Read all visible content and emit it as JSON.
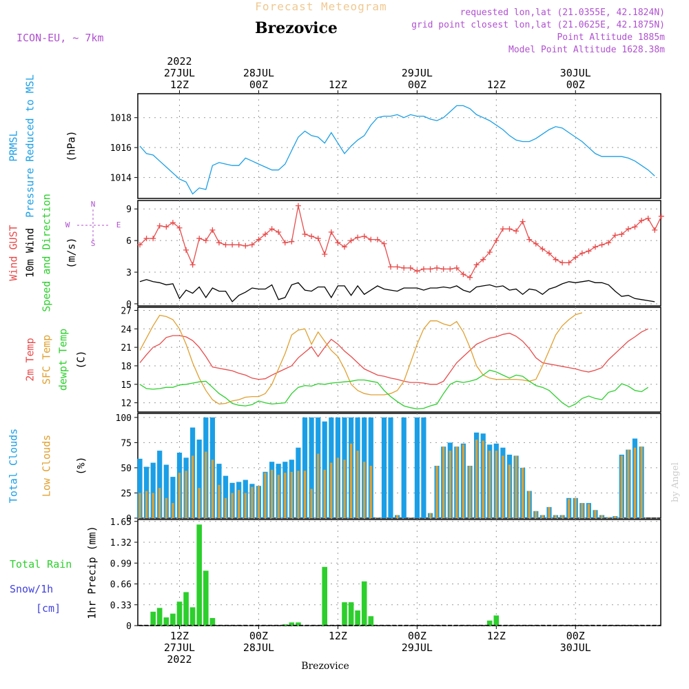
{
  "header": {
    "forecast_title": "Forecast Meteogram",
    "location": "Brezovice",
    "model": "ICON-EU, ~ 7km",
    "requested": "requested lon,lat (21.0355E, 42.1824N)",
    "grid_point": "grid point closest lon,lat (21.0625E, 42.1875N)",
    "point_altitude": "Point Altitude 1885m",
    "model_altitude": "Model Point Altitude 1628.38m",
    "watermark": "by Angel",
    "footer": "Brezovice"
  },
  "time_axis": {
    "top": [
      {
        "x": 6,
        "lines": [
          "2022",
          "27JUL",
          "12Z"
        ]
      },
      {
        "x": 18,
        "lines": [
          "28JUL",
          "00Z"
        ]
      },
      {
        "x": 30,
        "lines": [
          "12Z"
        ]
      },
      {
        "x": 42,
        "lines": [
          "29JUL",
          "00Z"
        ]
      },
      {
        "x": 54,
        "lines": [
          "12Z"
        ]
      },
      {
        "x": 66,
        "lines": [
          "30JUL",
          "00Z"
        ]
      }
    ],
    "bottom": [
      {
        "x": 6,
        "lines": [
          "12Z",
          "27JUL",
          "2022"
        ]
      },
      {
        "x": 18,
        "lines": [
          "00Z",
          "28JUL"
        ]
      },
      {
        "x": 30,
        "lines": [
          "12Z"
        ]
      },
      {
        "x": 42,
        "lines": [
          "00Z",
          "29JUL"
        ]
      },
      {
        "x": 54,
        "lines": [
          "12Z"
        ]
      },
      {
        "x": 66,
        "lines": [
          "00Z",
          "30JUL"
        ]
      }
    ]
  },
  "chart_data": [
    {
      "type": "line",
      "ylabels": [
        "PRMSL",
        "Pressure Reduced to MSL",
        "(hPa)"
      ],
      "ylim": [
        1012.6,
        1019.6
      ],
      "yticks": [
        1014,
        1016,
        1018
      ],
      "grid": true,
      "series": [
        {
          "color": "#1a9fe6",
          "x_start": 0,
          "values": [
            1016.1,
            1015.6,
            1015.5,
            1015.1,
            1014.7,
            1014.3,
            1013.9,
            1013.7,
            1012.9,
            1013.3,
            1013.2,
            1014.8,
            1015.0,
            1014.9,
            1014.8,
            1014.8,
            1015.3,
            1015.1,
            1014.9,
            1014.7,
            1014.5,
            1014.5,
            1014.9,
            1015.8,
            1016.7,
            1017.1,
            1016.8,
            1016.7,
            1016.3,
            1017.0,
            1016.3,
            1015.6,
            1016.1,
            1016.5,
            1016.8,
            1017.5,
            1018.0,
            1018.1,
            1018.1,
            1018.2,
            1018.0,
            1018.2,
            1018.1,
            1018.1,
            1017.9,
            1017.8,
            1018.0,
            1018.4,
            1018.8,
            1018.8,
            1018.6,
            1018.2,
            1018.0,
            1017.8,
            1017.5,
            1017.2,
            1016.8,
            1016.5,
            1016.4,
            1016.4,
            1016.6,
            1016.9,
            1017.2,
            1017.4,
            1017.3,
            1017.0,
            1016.7,
            1016.4,
            1016.0,
            1015.6,
            1015.4,
            1015.4,
            1015.4,
            1015.4,
            1015.3,
            1015.1,
            1014.8,
            1014.5,
            1014.1
          ]
        }
      ]
    },
    {
      "type": "line",
      "ylabels": [
        "Wind GUST",
        "10m Wind",
        "Speed and Direction",
        "(m/s)"
      ],
      "compass": [
        "N",
        "W",
        "E",
        "S"
      ],
      "ylim": [
        -0.2,
        9.8
      ],
      "yticks": [
        0,
        3,
        6,
        9
      ],
      "grid": true,
      "series": [
        {
          "color": "#e84b4b",
          "marker": "+",
          "x_start": 0,
          "values": [
            5.6,
            6.2,
            6.2,
            7.4,
            7.3,
            7.7,
            7.2,
            5.1,
            3.7,
            6.2,
            6.0,
            7.0,
            5.8,
            5.6,
            5.6,
            5.6,
            5.5,
            5.6,
            6.1,
            6.6,
            7.1,
            6.8,
            5.8,
            5.9,
            9.3,
            6.6,
            6.4,
            6.2,
            4.7,
            6.8,
            5.8,
            5.4,
            6.0,
            6.3,
            6.4,
            6.1,
            6.1,
            5.7,
            3.5,
            3.5,
            3.4,
            3.4,
            3.1,
            3.3,
            3.3,
            3.4,
            3.3,
            3.3,
            3.4,
            2.8,
            2.5,
            3.7,
            4.2,
            4.9,
            6.0,
            7.1,
            7.1,
            6.9,
            7.8,
            6.1,
            5.7,
            5.2,
            4.8,
            4.2,
            3.9,
            3.9,
            4.4,
            4.8,
            5.0,
            5.4,
            5.6,
            5.8,
            6.5,
            6.6,
            7.1,
            7.3,
            7.9,
            8.1,
            7.0,
            8.3
          ]
        },
        {
          "color": "#000000",
          "x_start": 0,
          "values": [
            2.1,
            2.3,
            2.1,
            2.0,
            1.8,
            1.9,
            0.5,
            1.3,
            1.0,
            1.6,
            0.6,
            1.5,
            1.2,
            1.2,
            0.2,
            0.8,
            1.1,
            1.5,
            1.4,
            1.4,
            1.8,
            0.4,
            0.6,
            1.8,
            2.0,
            1.3,
            1.2,
            1.6,
            1.6,
            0.6,
            1.7,
            1.7,
            0.8,
            1.7,
            0.9,
            1.3,
            1.7,
            1.4,
            1.3,
            1.2,
            1.5,
            1.5,
            1.5,
            1.3,
            1.5,
            1.5,
            1.6,
            1.5,
            1.7,
            1.3,
            1.1,
            1.6,
            1.7,
            1.8,
            1.6,
            1.7,
            1.3,
            1.4,
            0.9,
            1.4,
            1.3,
            0.9,
            1.4,
            1.6,
            1.9,
            2.1,
            2.0,
            2.1,
            2.2,
            2.0,
            2.0,
            1.8,
            1.2,
            0.7,
            0.8,
            0.5,
            0.4,
            0.3,
            0.2
          ]
        }
      ]
    },
    {
      "type": "line",
      "ylabels": [
        "2m Temp",
        "SFC Temp",
        "dewpt Temp",
        "(C)"
      ],
      "ylim": [
        10.5,
        27.5
      ],
      "yticks": [
        12,
        15,
        18,
        21,
        24,
        27
      ],
      "grid": true,
      "series": [
        {
          "color": "#e84b4b",
          "x_start": 0,
          "values": [
            18.5,
            19.8,
            21.0,
            21.5,
            22.6,
            22.9,
            22.9,
            22.7,
            22.1,
            21.0,
            19.5,
            17.8,
            17.6,
            17.4,
            17.2,
            16.8,
            16.5,
            16.0,
            15.8,
            15.9,
            16.5,
            17.0,
            17.5,
            18.0,
            19.3,
            20.2,
            21.1,
            19.5,
            21.0,
            22.3,
            21.5,
            20.4,
            19.5,
            18.5,
            17.5,
            17.0,
            16.5,
            16.3,
            16.0,
            15.8,
            15.5,
            15.3,
            15.3,
            15.2,
            15.0,
            15.0,
            15.5,
            17.0,
            18.5,
            19.5,
            20.5,
            21.5,
            22.0,
            22.5,
            22.7,
            23.1,
            23.3,
            22.8,
            22.0,
            20.8,
            19.3,
            18.5,
            18.3,
            18.1,
            17.9,
            17.7,
            17.5,
            17.2,
            17.0,
            17.3,
            17.7,
            19.0,
            20.0,
            21.0,
            22.0,
            22.7,
            23.5,
            24.0
          ]
        },
        {
          "color": "#e0a030",
          "x_start": 0,
          "values": [
            20.5,
            22.5,
            24.5,
            26.2,
            26.0,
            25.5,
            24.0,
            21.5,
            18.5,
            16.0,
            14.0,
            12.5,
            11.8,
            11.9,
            12.3,
            12.5,
            12.9,
            13.0,
            13.0,
            13.5,
            15.0,
            17.5,
            20.0,
            23.0,
            23.8,
            24.0,
            21.5,
            23.5,
            22.0,
            20.5,
            19.5,
            17.5,
            15.0,
            14.0,
            13.5,
            13.3,
            13.3,
            13.3,
            13.5,
            14.0,
            15.5,
            18.5,
            21.5,
            24.0,
            25.3,
            25.3,
            24.8,
            24.5,
            25.2,
            23.5,
            21.0,
            18.0,
            16.5,
            16.0,
            15.8,
            15.8,
            15.8,
            15.8,
            15.7,
            15.5,
            15.8,
            18.0,
            20.5,
            23.0,
            24.5,
            25.5,
            26.3,
            26.6
          ]
        },
        {
          "color": "#2ccf2c",
          "x_start": 0,
          "values": [
            15.0,
            14.3,
            14.2,
            14.3,
            14.5,
            14.5,
            14.9,
            15.0,
            15.2,
            15.4,
            15.5,
            14.5,
            13.5,
            12.8,
            11.9,
            11.6,
            11.5,
            11.7,
            12.3,
            12.0,
            11.8,
            11.9,
            12.0,
            13.5,
            14.5,
            14.8,
            14.7,
            15.1,
            15.0,
            15.2,
            15.3,
            15.4,
            15.5,
            15.7,
            15.7,
            15.5,
            15.3,
            14.0,
            13.0,
            12.2,
            11.5,
            11.2,
            11.0,
            11.1,
            11.5,
            11.8,
            13.5,
            15.0,
            15.5,
            15.3,
            15.5,
            15.8,
            16.5,
            17.3,
            17.0,
            16.5,
            16.0,
            16.5,
            16.3,
            15.5,
            14.8,
            14.5,
            14.0,
            13.0,
            12.0,
            11.3,
            11.8,
            12.7,
            13.1,
            12.7,
            12.5,
            13.7,
            14.0,
            15.1,
            14.7,
            14.0,
            13.8,
            14.5
          ]
        }
      ]
    },
    {
      "type": "bar",
      "ylabels": [
        "Total Clouds",
        "Low Clouds",
        "(%)"
      ],
      "ylim": [
        0,
        104
      ],
      "yticks": [
        0,
        25,
        50,
        75,
        100
      ],
      "grid": true,
      "x_start": 0,
      "series": [
        {
          "name": "Total Clouds",
          "color": "#1a9fe6",
          "values": [
            59,
            51,
            55,
            67,
            53,
            41,
            65,
            60,
            90,
            78,
            100,
            100,
            54,
            42,
            35,
            36,
            38,
            34,
            32,
            46,
            56,
            54,
            56,
            58,
            70,
            100,
            100,
            100,
            96,
            100,
            100,
            100,
            100,
            100,
            100,
            100,
            100,
            100,
            100,
            100,
            100,
            100,
            100,
            100,
            100,
            100,
            100,
            47,
            0,
            0,
            0,
            0,
            0,
            0,
            0,
            0,
            0,
            0,
            0,
            0,
            0,
            0,
            0,
            0,
            0,
            0,
            0,
            0,
            0,
            0,
            0,
            0,
            0,
            0,
            0,
            0,
            0,
            0,
            0
          ]
        },
        {
          "name": "Low Clouds",
          "color": "#e0a030",
          "values": [
            25,
            27,
            25,
            30,
            20,
            15,
            45,
            47,
            62,
            30,
            66,
            58,
            33,
            20,
            25,
            28,
            25,
            31,
            32,
            45,
            48,
            43,
            45,
            46,
            47,
            47,
            29,
            64,
            48,
            55,
            60,
            58,
            74,
            67,
            56,
            52,
            48,
            0,
            0,
            0,
            0,
            0,
            0,
            0,
            0,
            0,
            0,
            0,
            0,
            0,
            0,
            0,
            0,
            0,
            0,
            0,
            0,
            0,
            0,
            0,
            0,
            0,
            0,
            0,
            0,
            0,
            0,
            0,
            0,
            0,
            0,
            0,
            0,
            0,
            0,
            0,
            0,
            0,
            0
          ]
        }
      ],
      "overrides": [
        {
          "x": 36,
          "total": 0.5,
          "low": 0.5
        },
        {
          "x": 39,
          "total": 3,
          "low": 3
        },
        {
          "x": 41,
          "total": 0.5,
          "low": 0.5
        },
        {
          "x": 44,
          "total": 5,
          "low": 5
        },
        {
          "x": 45,
          "total": 52,
          "low": 52
        },
        {
          "x": 46,
          "total": 71,
          "low": 71
        },
        {
          "x": 47,
          "total": 75,
          "low": 67
        },
        {
          "x": 48,
          "total": 71,
          "low": 71
        },
        {
          "x": 49,
          "total": 74,
          "low": 73
        },
        {
          "x": 50,
          "total": 52,
          "low": 52
        },
        {
          "x": 51,
          "total": 85,
          "low": 78
        },
        {
          "x": 52,
          "total": 84,
          "low": 77
        },
        {
          "x": 53,
          "total": 73,
          "low": 67
        },
        {
          "x": 54,
          "total": 74,
          "low": 67
        },
        {
          "x": 55,
          "total": 70,
          "low": 62
        },
        {
          "x": 56,
          "total": 63,
          "low": 53
        },
        {
          "x": 57,
          "total": 62,
          "low": 62
        },
        {
          "x": 58,
          "total": 50,
          "low": 50
        },
        {
          "x": 59,
          "total": 27,
          "low": 27
        },
        {
          "x": 60,
          "total": 7,
          "low": 7
        },
        {
          "x": 61,
          "total": 3,
          "low": 3
        },
        {
          "x": 62,
          "total": 11,
          "low": 11
        },
        {
          "x": 63,
          "total": 3,
          "low": 3
        },
        {
          "x": 64,
          "total": 3,
          "low": 3
        },
        {
          "x": 65,
          "total": 20,
          "low": 19
        },
        {
          "x": 66,
          "total": 20,
          "low": 20
        },
        {
          "x": 67,
          "total": 15,
          "low": 15
        },
        {
          "x": 68,
          "total": 15,
          "low": 14
        },
        {
          "x": 69,
          "total": 8,
          "low": 8
        },
        {
          "x": 70,
          "total": 3,
          "low": 3
        },
        {
          "x": 71,
          "total": 1,
          "low": 1
        },
        {
          "x": 72,
          "total": 2,
          "low": 2
        },
        {
          "x": 73,
          "total": 63,
          "low": 62
        },
        {
          "x": 74,
          "total": 68,
          "low": 68
        },
        {
          "x": 75,
          "total": 79,
          "low": 70
        },
        {
          "x": 76,
          "total": 71,
          "low": 71
        }
      ]
    },
    {
      "type": "bar",
      "ylabels": [
        "1hr Precip (mm)"
      ],
      "legend": [
        "Total Rain",
        "Snow/1h",
        "[cm]"
      ],
      "ylim": [
        0,
        1.68
      ],
      "yticks": [
        0,
        0.33,
        0.66,
        0.99,
        1.32,
        1.65
      ],
      "grid": true,
      "series": [
        {
          "name": "Total Rain",
          "color": "#2ccf2c",
          "points": [
            [
              2,
              0.22
            ],
            [
              3,
              0.28
            ],
            [
              4,
              0.13
            ],
            [
              5,
              0.19
            ],
            [
              6,
              0.38
            ],
            [
              7,
              0.53
            ],
            [
              8,
              0.29
            ],
            [
              9,
              1.6
            ],
            [
              10,
              0.87
            ],
            [
              11,
              0.12
            ],
            [
              22,
              0.02
            ],
            [
              23,
              0.05
            ],
            [
              24,
              0.05
            ],
            [
              28,
              0.93
            ],
            [
              31,
              0.37
            ],
            [
              32,
              0.37
            ],
            [
              33,
              0.24
            ],
            [
              34,
              0.7
            ],
            [
              35,
              0.15
            ],
            [
              53,
              0.08
            ],
            [
              54,
              0.16
            ]
          ]
        }
      ]
    }
  ]
}
